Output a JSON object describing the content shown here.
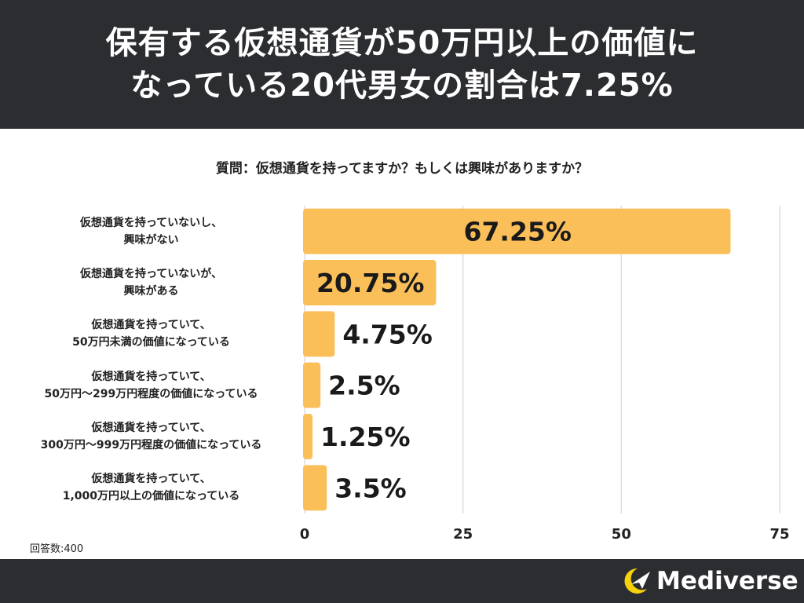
{
  "header": {
    "title_line1": "保有する仮想通貨が50万円以上の価値に",
    "title_line2": "なっている20代男女の割合は7.25%"
  },
  "question": "質問：仮想通貨を持ってますか？もしくは興味がありますか？",
  "chart_data": {
    "type": "bar",
    "orientation": "horizontal",
    "title": "質問：仮想通貨を持ってますか？もしくは興味がありますか？",
    "categories": [
      [
        "仮想通貨を持っていないし、",
        "興味がない"
      ],
      [
        "仮想通貨を持っていないが、",
        "興味がある"
      ],
      [
        "仮想通貨を持っていて、",
        "50万円未満の価値になっている"
      ],
      [
        "仮想通貨を持っていて、",
        "50万円〜299万円程度の価値になっている"
      ],
      [
        "仮想通貨を持っていて、",
        "300万円〜999万円程度の価値になっている"
      ],
      [
        "仮想通貨を持っていて、",
        "1,000万円以上の価値になっている"
      ]
    ],
    "values": [
      67.25,
      20.75,
      4.75,
      2.5,
      1.25,
      3.5
    ],
    "value_labels": [
      "67.25%",
      "20.75%",
      "4.75%",
      "2.5%",
      "1.25%",
      "3.5%"
    ],
    "xlim": [
      0,
      75
    ],
    "xticks": [
      "0",
      "25",
      "50",
      "75"
    ],
    "grid": true,
    "xlabel": "",
    "ylabel": "",
    "bar_color": "#fbbf5a"
  },
  "responses": "回答数:400",
  "footer": {
    "brand": "Mediverse",
    "logo_icon": "crescent-plane-icon",
    "accent": "#f5d20a"
  },
  "colors": {
    "header_bg": "#2b2d30",
    "bar": "#fbbf5a",
    "grid": "#dddddd"
  }
}
